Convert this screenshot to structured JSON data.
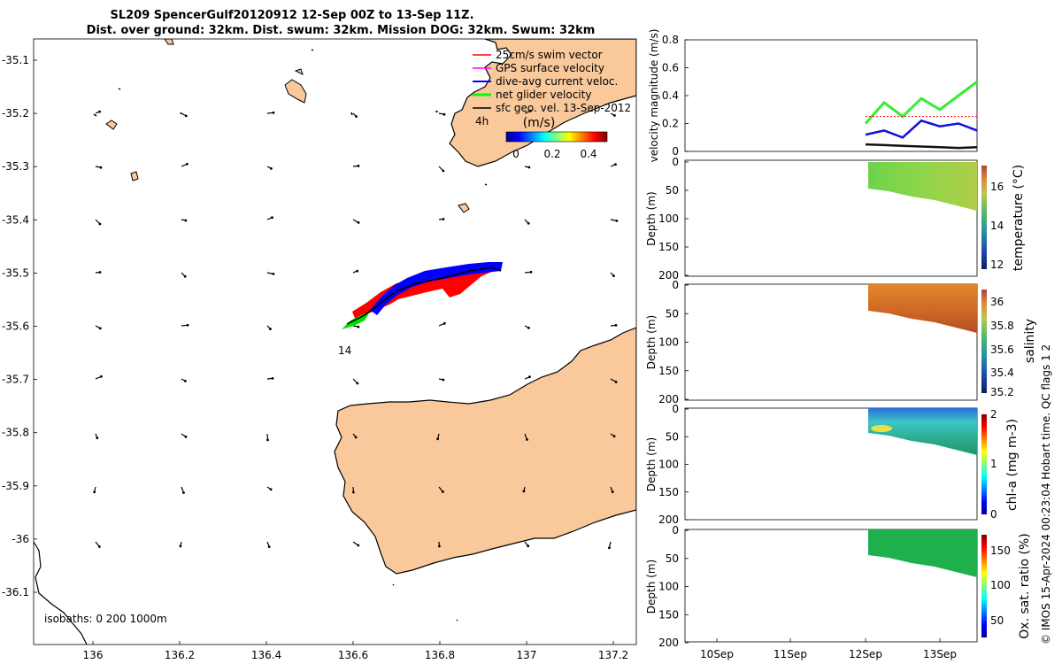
{
  "title": {
    "line1": "SL209 SpencerGulf20120912 12-Sep 00Z to 13-Sep 11Z.",
    "line2": "Dist. over ground: 32km. Dist. swum: 32km. Mission DOG: 32km. Swum: 32km"
  },
  "map": {
    "lat_ticks": [
      "-35.1",
      "-35.2",
      "-35.3",
      "-35.4",
      "-35.5",
      "-35.6",
      "-35.7",
      "-35.8",
      "-35.9",
      "-36",
      "-36.1"
    ],
    "lon_ticks": [
      "136",
      "136.2",
      "136.4",
      "136.6",
      "136.8",
      "137",
      "137.2"
    ],
    "legend": [
      {
        "label": "25cm/s swim vector",
        "color": "#ff0000"
      },
      {
        "label": "GPS surface velocity",
        "color": "#ff00ff"
      },
      {
        "label": "dive-avg current veloc.",
        "color": "#0000ff"
      },
      {
        "label": "net glider velocity",
        "color": "#00ff00"
      },
      {
        "label": "sfc geo. vel. 13-Sep-2012",
        "color": "#000000"
      }
    ],
    "time_label": "4h",
    "colorbar_unit": "(m/s)",
    "colorbar_ticks": [
      "0",
      "0.2",
      "0.4"
    ],
    "track_label": "14",
    "isobaths": "isobaths: 0   200  1000m",
    "land_color": "#f9c89b"
  },
  "panels": {
    "x_ticks": [
      "10Sep",
      "11Sep",
      "12Sep",
      "13Sep"
    ],
    "velocity": {
      "ylabel": "velocity magnitude (m/s)",
      "yticks": [
        "0",
        "0.2",
        "0.4",
        "0.6",
        "0.8"
      ]
    },
    "temperature": {
      "cbar_label": "temperature (°C)",
      "cbar_ticks": [
        "16",
        "14",
        "12"
      ]
    },
    "salinity": {
      "cbar_label": "salinity",
      "cbar_ticks": [
        "36",
        "35.8",
        "35.6",
        "35.4",
        "35.2"
      ]
    },
    "chla": {
      "cbar_label": "chl-a (mg m-3)",
      "cbar_ticks": [
        "2",
        "1",
        "0"
      ]
    },
    "oxygen": {
      "cbar_label": "Ox. sat. ratio (%)",
      "cbar_ticks": [
        "150",
        "100",
        "50"
      ]
    },
    "depth_label": "Depth (m)",
    "depth_ticks": [
      "0",
      "50",
      "100",
      "150",
      "200"
    ]
  },
  "credit": "© IMOS 15-Apr-2024 00:23:04 Hobart time. QC flags 1  2",
  "chart_data": [
    {
      "type": "map",
      "title": "SL209 SpencerGulf20120912 12-Sep 00Z to 13-Sep 11Z.",
      "xlim": [
        135.86,
        137.25
      ],
      "ylim": [
        -36.2,
        -35.04
      ],
      "series": [
        {
          "name": "glider track (lon,lat)",
          "x": [
            136.58,
            136.62,
            136.66,
            136.7,
            136.76,
            136.82,
            136.86,
            136.9,
            136.94
          ],
          "y": [
            -35.6,
            -35.575,
            -35.545,
            -35.525,
            -35.51,
            -35.505,
            -35.5,
            -35.495,
            -35.49
          ]
        }
      ]
    },
    {
      "type": "line",
      "ylabel": "velocity magnitude (m/s)",
      "ylim": [
        0,
        0.8
      ],
      "x": [
        "12Sep",
        "12Sep 06",
        "12Sep 12",
        "12Sep 18",
        "13Sep",
        "13Sep 06",
        "13Sep 11"
      ],
      "series": [
        {
          "name": "net glider velocity",
          "values": [
            0.2,
            0.35,
            0.25,
            0.38,
            0.3,
            0.4,
            0.5
          ]
        },
        {
          "name": "dive-avg current veloc.",
          "values": [
            0.12,
            0.15,
            0.1,
            0.22,
            0.18,
            0.2,
            0.15
          ]
        },
        {
          "name": "25cm/s swim vector",
          "values": [
            0.25,
            0.25,
            0.25,
            0.25,
            0.25,
            0.25,
            0.25
          ]
        },
        {
          "name": "sfc geo. vel.",
          "values": [
            0.05,
            0.045,
            0.04,
            0.035,
            0.03,
            0.025,
            0.03
          ]
        }
      ]
    },
    {
      "type": "heatmap",
      "name": "temperature (°C)",
      "ylim": [
        200,
        0
      ],
      "clim": [
        11.8,
        17.0
      ],
      "max_depth": [
        45,
        85
      ],
      "mean": 15.2
    },
    {
      "type": "heatmap",
      "name": "salinity",
      "ylim": [
        200,
        0
      ],
      "clim": [
        35.2,
        36.1
      ],
      "max_depth": [
        45,
        85
      ],
      "mean": 35.9
    },
    {
      "type": "heatmap",
      "name": "chl-a (mg m-3)",
      "ylim": [
        200,
        0
      ],
      "clim": [
        0,
        2
      ],
      "max_depth": [
        45,
        85
      ],
      "mean": 0.9
    },
    {
      "type": "heatmap",
      "name": "Ox. sat. ratio (%)",
      "ylim": [
        200,
        0
      ],
      "clim": [
        25,
        175
      ],
      "max_depth": [
        45,
        85
      ],
      "mean": 105
    }
  ]
}
